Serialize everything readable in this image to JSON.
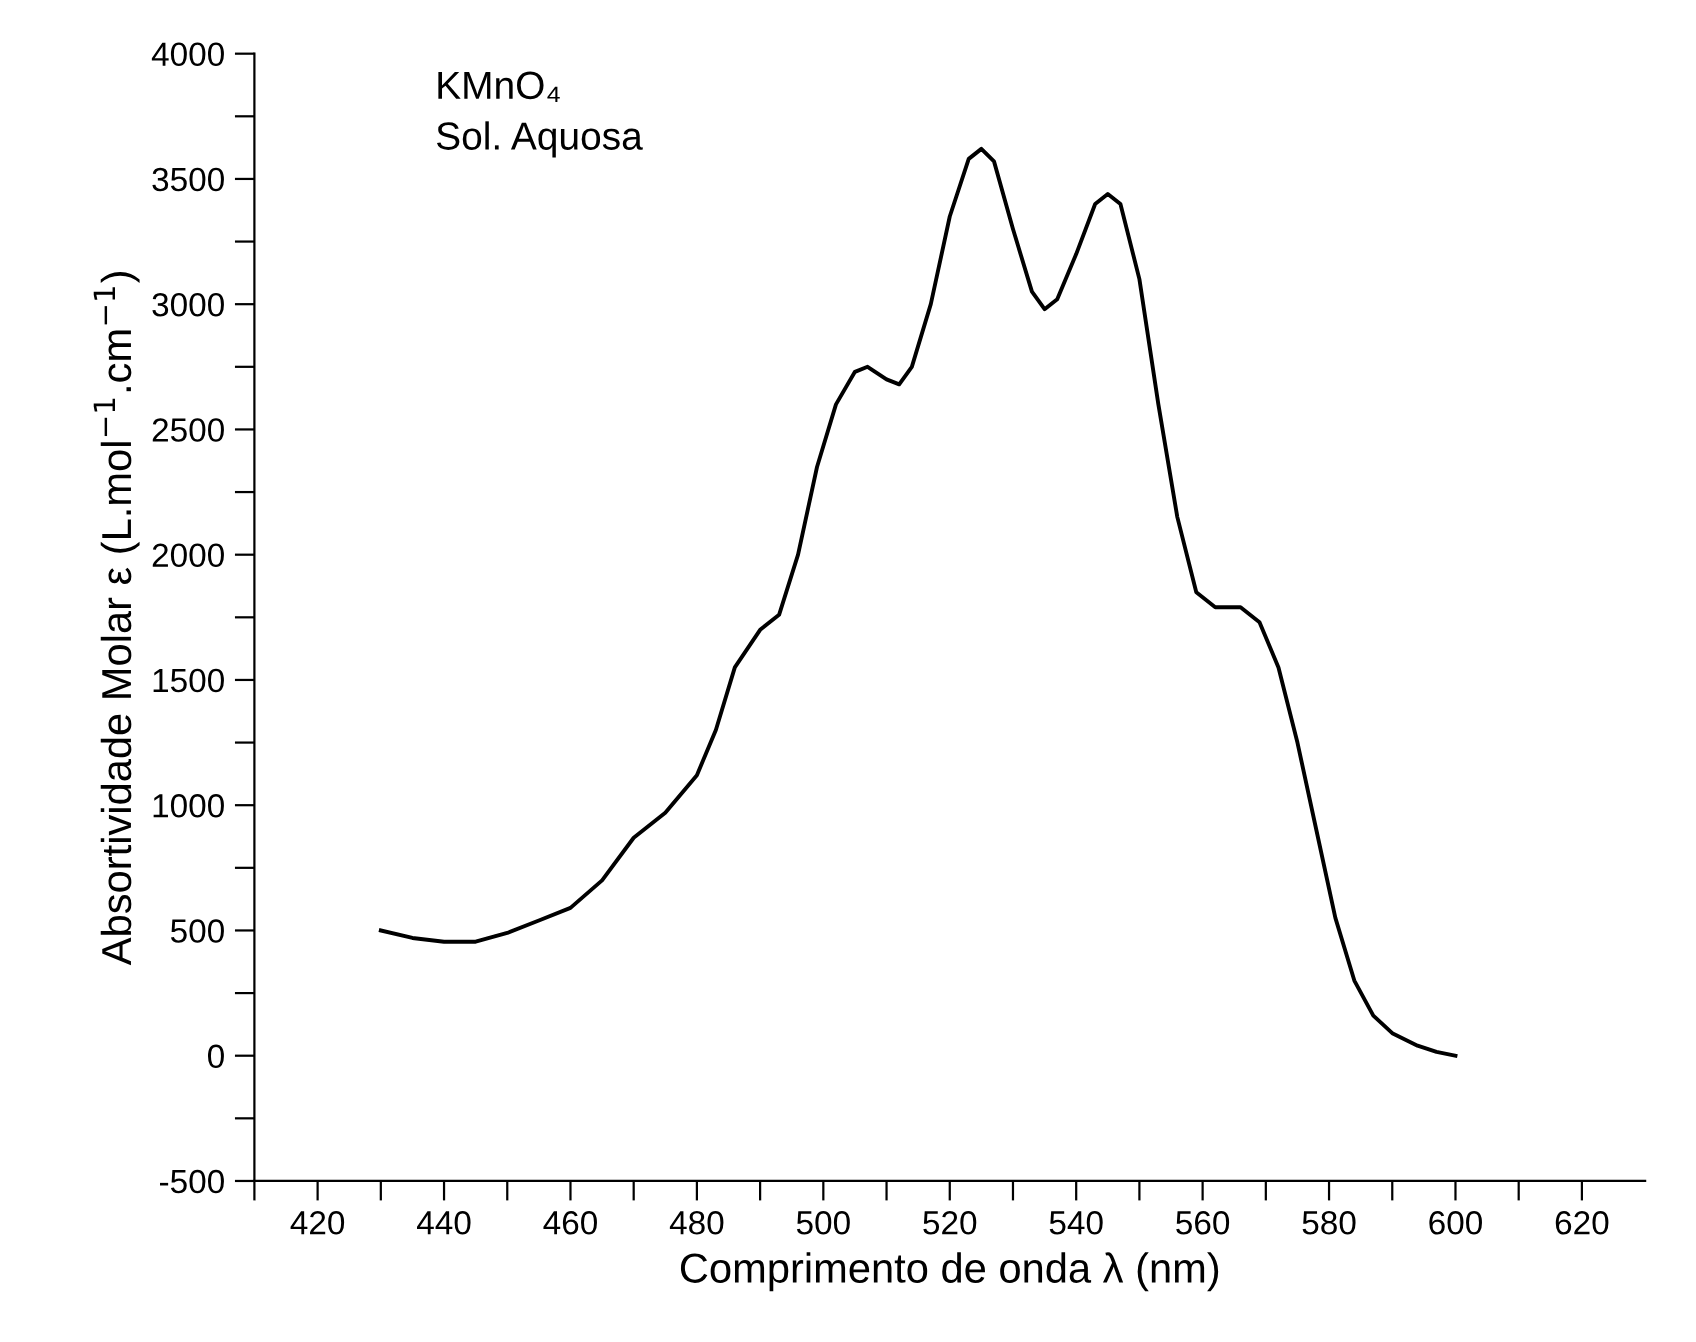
{
  "chart_data": {
    "type": "line",
    "xlabel": "Comprimento de onda λ (nm)",
    "ylabel": "Absortividade Molar ε (L.mol$^{−1}$.cm$^{−1}$)",
    "annotations": [
      "KMnO₄",
      "Sol. Aquosa"
    ],
    "x": [
      430,
      435,
      440,
      445,
      450,
      455,
      460,
      465,
      470,
      475,
      480,
      483,
      486,
      490,
      493,
      496,
      499,
      502,
      505,
      507,
      510,
      512,
      514,
      517,
      520,
      523,
      525,
      527,
      530,
      533,
      535,
      537,
      540,
      543,
      545,
      547,
      550,
      553,
      556,
      559,
      562,
      566,
      569,
      572,
      575,
      578,
      581,
      584,
      587,
      590,
      594,
      597,
      600
    ],
    "series": [
      {
        "color": "#000000",
        "values": [
          500,
          470,
          455,
          455,
          490,
          540,
          590,
          700,
          870,
          970,
          1120,
          1300,
          1550,
          1700,
          1760,
          2000,
          2350,
          2600,
          2730,
          2750,
          2700,
          2680,
          2750,
          3000,
          3350,
          3580,
          3620,
          3570,
          3300,
          3050,
          2980,
          3020,
          3200,
          3400,
          3440,
          3400,
          3100,
          2600,
          2150,
          1850,
          1790,
          1790,
          1730,
          1550,
          1250,
          900,
          550,
          300,
          160,
          90,
          40,
          15,
          0
        ]
      }
    ],
    "xlim": [
      410,
      630
    ],
    "ylim": [
      -500,
      4000
    ],
    "xticks": [
      {
        "value": 410,
        "label": null
      },
      420,
      {
        "value": 430,
        "label": null
      },
      440,
      {
        "value": 450,
        "label": null
      },
      460,
      {
        "value": 470,
        "label": null
      },
      480,
      {
        "value": 490,
        "label": null
      },
      500,
      {
        "value": 510,
        "label": null
      },
      520,
      {
        "value": 530,
        "label": null
      },
      540,
      {
        "value": 550,
        "label": null
      },
      560,
      {
        "value": 570,
        "label": null
      },
      580,
      {
        "value": 590,
        "label": null
      },
      600,
      {
        "value": 610,
        "label": null
      },
      620
    ],
    "yticks": [
      -500,
      {
        "value": -250,
        "label": null
      },
      0,
      {
        "value": 250,
        "label": null
      },
      500,
      {
        "value": 750,
        "label": null
      },
      1000,
      {
        "value": 1250,
        "label": null
      },
      1500,
      {
        "value": 1750,
        "label": null
      },
      2000,
      {
        "value": 2250,
        "label": null
      },
      2500,
      {
        "value": 2750,
        "label": null
      },
      3000,
      {
        "value": 3250,
        "label": null
      },
      3500,
      {
        "value": 3750,
        "label": null
      },
      4000
    ],
    "grid": false,
    "marker": "none",
    "line_style": "solid"
  }
}
